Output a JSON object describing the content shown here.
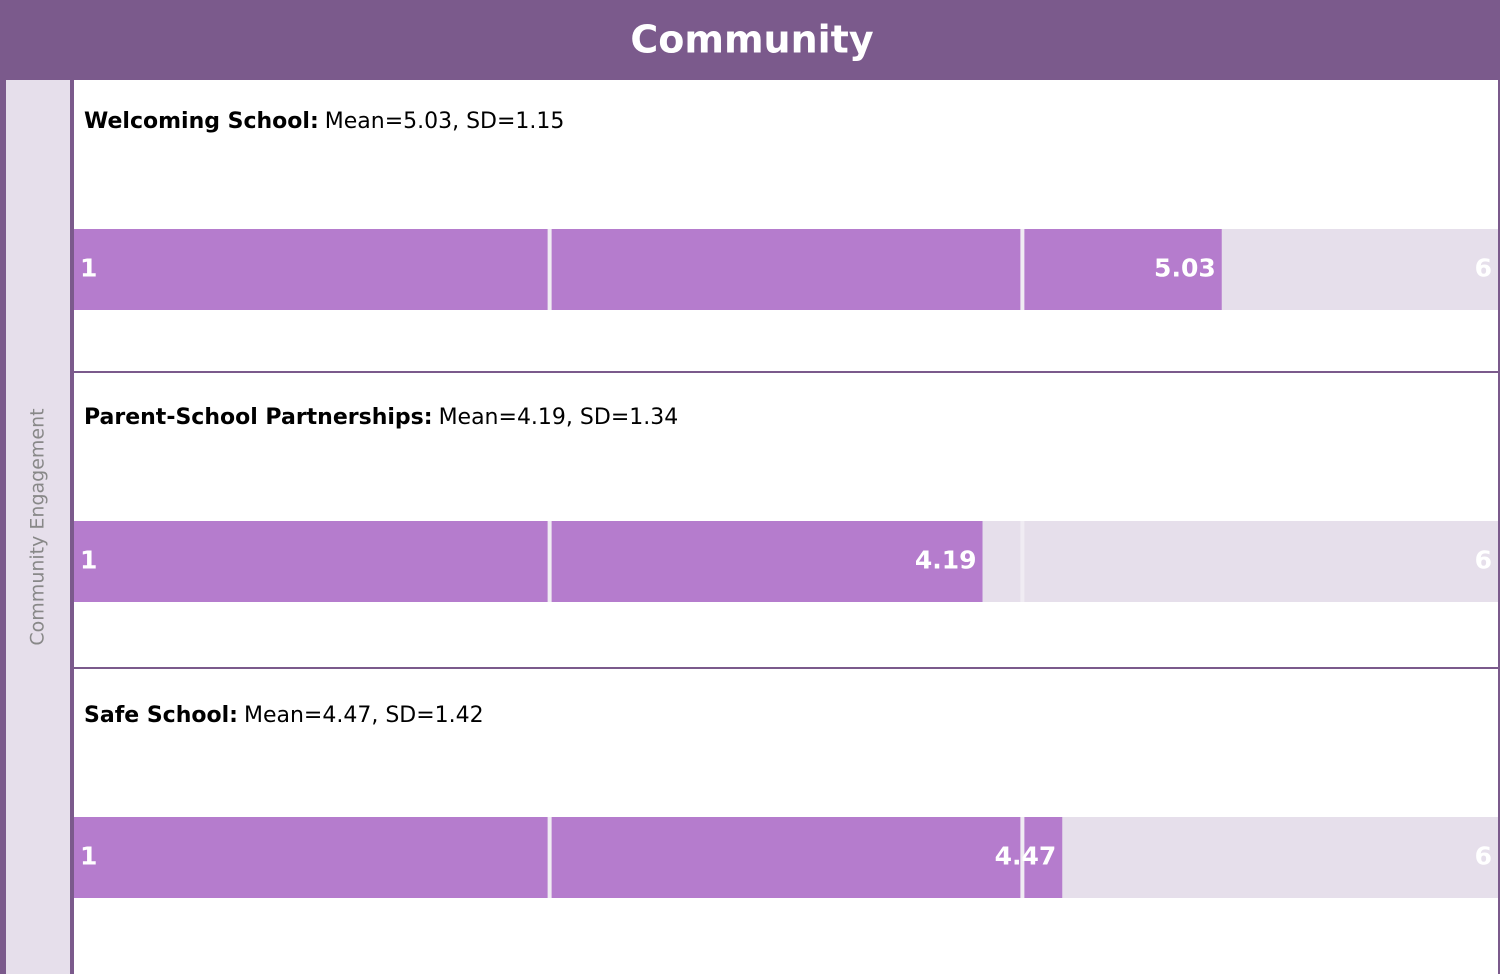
{
  "title": "Community",
  "section": "Community Engagement",
  "chart_data": [
    {
      "type": "gauge",
      "title": "Welcoming School:",
      "subtitle": "Mean=5.03, SD=1.15",
      "value": 5.03,
      "xlim": [
        1,
        6
      ],
      "band_edges": [
        2.67,
        4.33
      ],
      "color": "#b57ccd",
      "track_color": "#e6dfeb"
    },
    {
      "type": "gauge",
      "title": "Parent-School Partnerships:",
      "subtitle": "Mean=4.19, SD=1.34",
      "value": 4.19,
      "xlim": [
        1,
        6
      ],
      "band_edges": [
        2.67,
        4.33
      ],
      "color": "#b57ccd",
      "track_color": "#e6dfeb"
    },
    {
      "type": "gauge",
      "title": "Safe School:",
      "subtitle": "Mean=4.47, SD=1.42",
      "value": 4.47,
      "xlim": [
        1,
        6
      ],
      "band_edges": [
        2.67,
        4.33
      ],
      "color": "#b57ccd",
      "track_color": "#e6dfeb"
    }
  ]
}
